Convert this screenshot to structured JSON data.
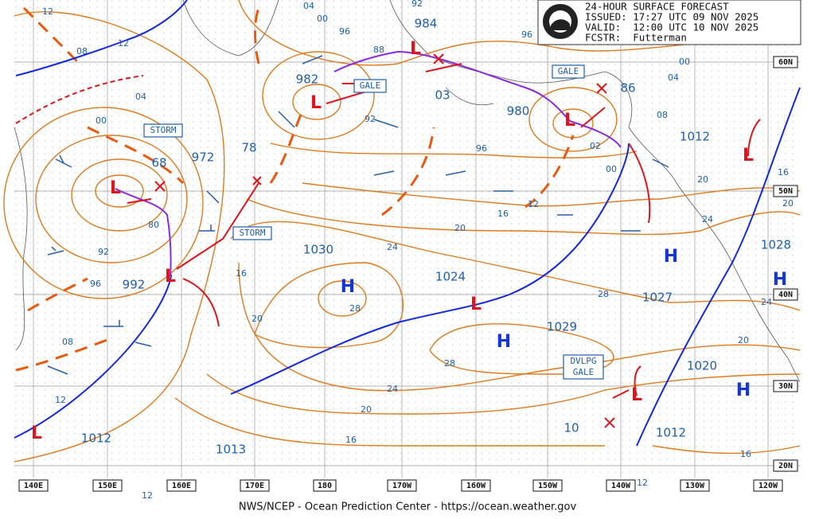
{
  "header": {
    "lines": [
      "24-HOUR SURFACE FORECAST",
      "ISSUED: 17:27 UTC 09 NOV 2025",
      "VALID:  12:00 UTC 10 NOV 2025",
      "FCSTR:  Futterman"
    ]
  },
  "footer": "NWS/NCEP - Ocean Prediction Center - https://ocean.weather.gov",
  "longitudes": [
    "140E",
    "150E",
    "160E",
    "170E",
    "180",
    "170W",
    "160W",
    "150W",
    "140W",
    "130W",
    "120W"
  ],
  "latitudes": [
    "60N",
    "50N",
    "40N",
    "30N",
    "20N"
  ],
  "symbols": [
    "L",
    "L",
    "L",
    "L",
    "L",
    "L",
    "L",
    "L",
    "L",
    "H",
    "H",
    "H",
    "H",
    "H"
  ],
  "pressure_labels": [
    "982",
    "984",
    "980",
    "68",
    "972",
    "78",
    "992",
    "03",
    "86",
    "1012",
    "1030",
    "1024",
    "1029",
    "1027",
    "1028",
    "1020",
    "1012",
    "1013",
    "1012",
    "10"
  ],
  "warnings": [
    "STORM",
    "STORM",
    "GALE",
    "GALE",
    "DVLPG",
    "GALE"
  ],
  "isobar_labels": [
    "12",
    "08",
    "12",
    "04",
    "00",
    "04",
    "00",
    "96",
    "92",
    "88",
    "96",
    "00",
    "04",
    "08",
    "92",
    "96",
    "02",
    "00",
    "20",
    "16",
    "20",
    "24",
    "12",
    "16",
    "20",
    "24",
    "80",
    "92",
    "96",
    "08",
    "12",
    "16",
    "20",
    "28",
    "28",
    "24",
    "20",
    "28",
    "24",
    "20",
    "16",
    "16",
    "12",
    "12"
  ]
}
